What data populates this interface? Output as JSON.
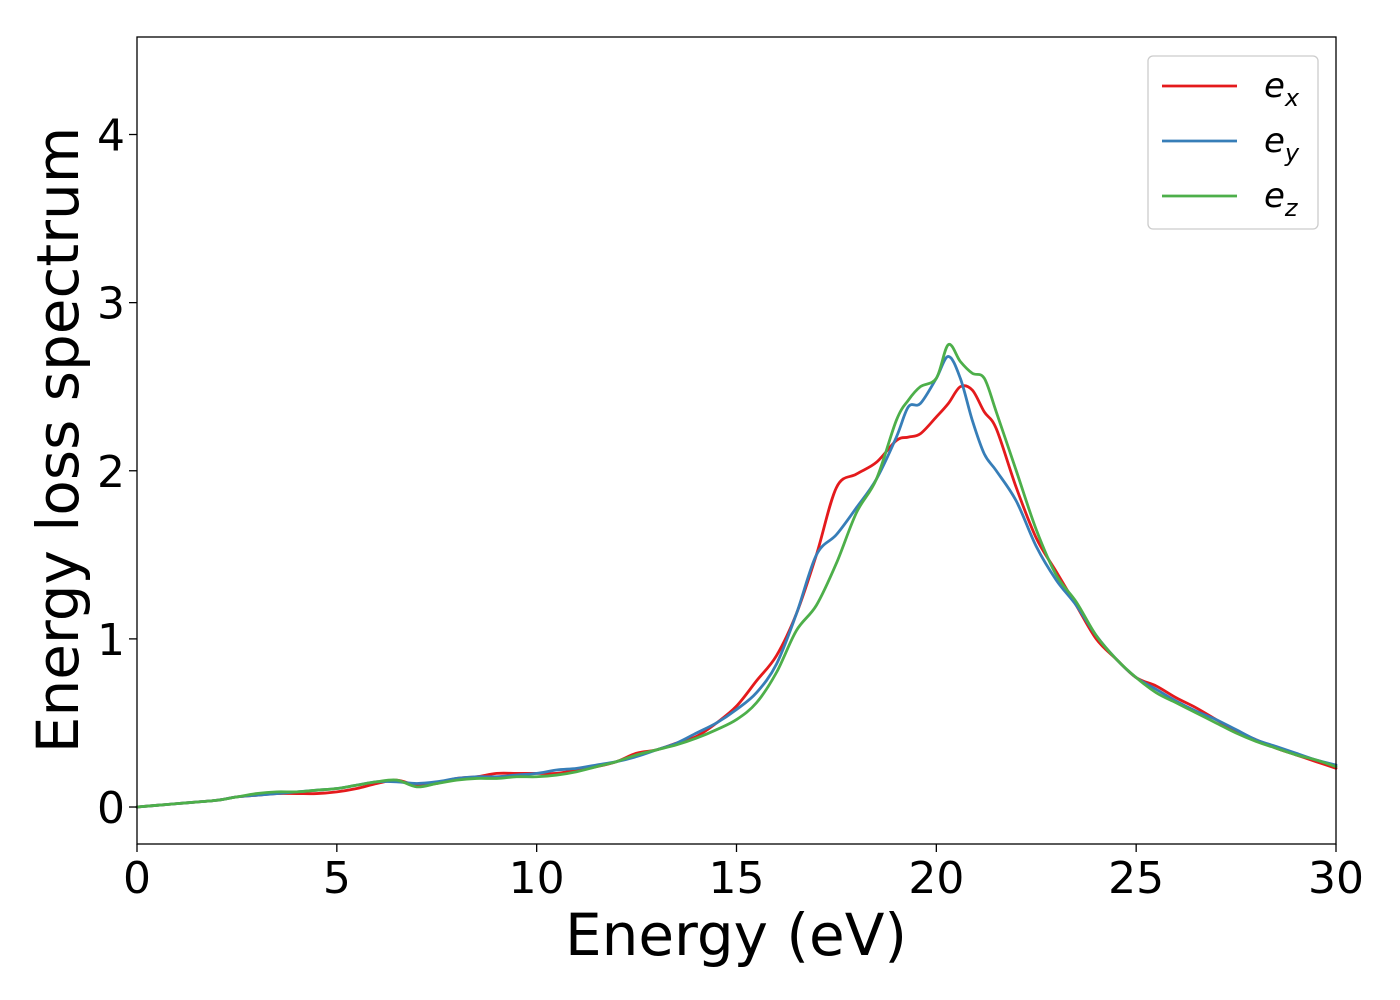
{
  "chart_data": {
    "type": "line",
    "title": "",
    "xlabel": "Energy (eV)",
    "ylabel": "Energy loss spectrum",
    "xlim": [
      0,
      30
    ],
    "ylim": [
      -0.22,
      4.58
    ],
    "xticks": [
      0,
      5,
      10,
      15,
      20,
      25,
      30
    ],
    "xtick_labels": [
      "0",
      "5",
      "10",
      "15",
      "20",
      "25",
      "30"
    ],
    "yticks": [
      0,
      1,
      2,
      3,
      4
    ],
    "ytick_labels": [
      "0",
      "1",
      "2",
      "3",
      "4"
    ],
    "grid": false,
    "legend_position": "top-right",
    "series": [
      {
        "name": "e_x",
        "label_base": "e",
        "label_sub": "x",
        "color": "#e41a1c",
        "x": [
          0,
          0.5,
          1,
          1.5,
          2,
          2.5,
          3,
          3.5,
          4,
          4.5,
          5,
          5.5,
          6,
          6.5,
          7,
          7.5,
          8,
          8.5,
          9,
          9.5,
          10,
          10.5,
          11,
          11.5,
          12,
          12.5,
          13,
          13.5,
          14,
          14.5,
          15,
          15.5,
          16,
          16.5,
          17,
          17.5,
          18,
          18.5,
          19,
          19.3,
          19.6,
          20,
          20.3,
          20.6,
          20.9,
          21.2,
          21.5,
          22,
          22.5,
          23,
          23.5,
          24,
          24.5,
          25,
          25.5,
          26,
          26.5,
          27,
          27.5,
          28,
          28.5,
          29,
          29.5,
          30
        ],
        "y": [
          0.0,
          0.01,
          0.02,
          0.03,
          0.04,
          0.06,
          0.07,
          0.08,
          0.08,
          0.08,
          0.09,
          0.11,
          0.14,
          0.16,
          0.13,
          0.14,
          0.17,
          0.18,
          0.2,
          0.2,
          0.2,
          0.2,
          0.22,
          0.24,
          0.27,
          0.32,
          0.34,
          0.38,
          0.42,
          0.5,
          0.6,
          0.75,
          0.9,
          1.15,
          1.5,
          1.9,
          1.98,
          2.05,
          2.18,
          2.2,
          2.22,
          2.32,
          2.4,
          2.5,
          2.48,
          2.35,
          2.25,
          1.9,
          1.6,
          1.4,
          1.2,
          1.0,
          0.88,
          0.77,
          0.72,
          0.65,
          0.59,
          0.52,
          0.45,
          0.4,
          0.35,
          0.31,
          0.27,
          0.23
        ]
      },
      {
        "name": "e_y",
        "label_base": "e",
        "label_sub": "y",
        "color": "#377eb8",
        "x": [
          0,
          0.5,
          1,
          1.5,
          2,
          2.5,
          3,
          3.5,
          4,
          4.5,
          5,
          5.5,
          6,
          6.5,
          7,
          7.5,
          8,
          8.5,
          9,
          9.5,
          10,
          10.5,
          11,
          11.5,
          12,
          12.5,
          13,
          13.5,
          14,
          14.5,
          15,
          15.5,
          16,
          16.5,
          17,
          17.5,
          18,
          18.5,
          19,
          19.3,
          19.6,
          20,
          20.3,
          20.6,
          20.9,
          21.2,
          21.5,
          22,
          22.5,
          23,
          23.5,
          24,
          24.5,
          25,
          25.5,
          26,
          26.5,
          27,
          27.5,
          28,
          28.5,
          29,
          29.5,
          30
        ],
        "y": [
          0.0,
          0.01,
          0.02,
          0.03,
          0.04,
          0.06,
          0.07,
          0.08,
          0.09,
          0.1,
          0.11,
          0.13,
          0.15,
          0.15,
          0.14,
          0.15,
          0.17,
          0.18,
          0.18,
          0.19,
          0.2,
          0.22,
          0.23,
          0.25,
          0.27,
          0.3,
          0.34,
          0.38,
          0.44,
          0.5,
          0.58,
          0.68,
          0.85,
          1.15,
          1.5,
          1.62,
          1.78,
          1.95,
          2.2,
          2.38,
          2.4,
          2.55,
          2.68,
          2.55,
          2.3,
          2.1,
          2.0,
          1.82,
          1.55,
          1.35,
          1.2,
          1.02,
          0.88,
          0.77,
          0.7,
          0.63,
          0.57,
          0.52,
          0.46,
          0.4,
          0.36,
          0.32,
          0.28,
          0.25
        ]
      },
      {
        "name": "e_z",
        "label_base": "e",
        "label_sub": "z",
        "color": "#4daf4a",
        "x": [
          0,
          0.5,
          1,
          1.5,
          2,
          2.5,
          3,
          3.5,
          4,
          4.5,
          5,
          5.5,
          6,
          6.5,
          7,
          7.5,
          8,
          8.5,
          9,
          9.5,
          10,
          10.5,
          11,
          11.5,
          12,
          12.5,
          13,
          13.5,
          14,
          14.5,
          15,
          15.5,
          16,
          16.5,
          17,
          17.5,
          18,
          18.5,
          19,
          19.3,
          19.6,
          20,
          20.3,
          20.6,
          20.9,
          21.2,
          21.5,
          22,
          22.5,
          23,
          23.5,
          24,
          24.5,
          25,
          25.5,
          26,
          26.5,
          27,
          27.5,
          28,
          28.5,
          29,
          29.5,
          30
        ],
        "y": [
          0.0,
          0.01,
          0.02,
          0.03,
          0.04,
          0.06,
          0.08,
          0.09,
          0.09,
          0.1,
          0.11,
          0.13,
          0.15,
          0.16,
          0.12,
          0.14,
          0.16,
          0.17,
          0.17,
          0.18,
          0.18,
          0.19,
          0.21,
          0.24,
          0.27,
          0.31,
          0.34,
          0.37,
          0.41,
          0.46,
          0.52,
          0.62,
          0.8,
          1.05,
          1.2,
          1.45,
          1.75,
          1.95,
          2.3,
          2.42,
          2.5,
          2.55,
          2.75,
          2.65,
          2.58,
          2.55,
          2.35,
          2.0,
          1.65,
          1.38,
          1.22,
          1.02,
          0.88,
          0.77,
          0.68,
          0.62,
          0.56,
          0.5,
          0.44,
          0.39,
          0.35,
          0.31,
          0.28,
          0.24
        ]
      }
    ]
  }
}
